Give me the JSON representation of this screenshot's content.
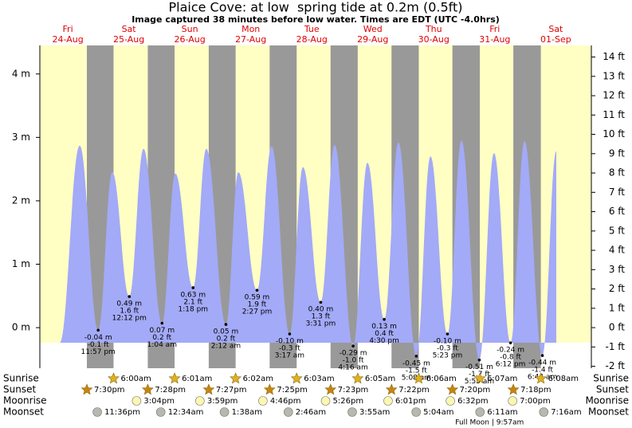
{
  "chart_data": {
    "type": "tide",
    "title": "Plaice Cove: at low  spring tide at 0.2m (0.5ft)",
    "subtitle": "Image captured 38 minutes before low water. Times are EDT (UTC -4.0hrs)",
    "days": {
      "names": [
        "Fri",
        "Sat",
        "Sun",
        "Mon",
        "Tue",
        "Wed",
        "Thu",
        "Fri",
        "Sat"
      ],
      "dates": [
        "24-Aug",
        "25-Aug",
        "26-Aug",
        "27-Aug",
        "28-Aug",
        "29-Aug",
        "30-Aug",
        "31-Aug",
        "01-Sep"
      ],
      "x": [
        12,
        36,
        60,
        84,
        108,
        132,
        156,
        180,
        204
      ]
    },
    "xlim": [
      1,
      218
    ],
    "ylim": [
      -0.64,
      4.45
    ],
    "yticks": [
      {
        "value": 0,
        "label": "0 m"
      },
      {
        "value": 1,
        "label": "1 m"
      },
      {
        "value": 2,
        "label": "2 m"
      },
      {
        "value": 3,
        "label": "3 m"
      },
      {
        "value": 4,
        "label": "4 m"
      }
    ],
    "y2lim": [
      -2.1,
      14.6
    ],
    "y2ticks": [
      {
        "value": -2,
        "label": "-2 ft"
      },
      {
        "value": -1,
        "label": "-1 ft"
      },
      {
        "value": 0,
        "label": "0 ft"
      },
      {
        "value": 1,
        "label": "1 ft"
      },
      {
        "value": 2,
        "label": "2 ft"
      },
      {
        "value": 3,
        "label": "3 ft"
      },
      {
        "value": 4,
        "label": "4 ft"
      },
      {
        "value": 5,
        "label": "5 ft"
      },
      {
        "value": 6,
        "label": "6 ft"
      },
      {
        "value": 7,
        "label": "7 ft"
      },
      {
        "value": 8,
        "label": "8 ft"
      },
      {
        "value": 9,
        "label": "9 ft"
      },
      {
        "value": 10,
        "label": "10 ft"
      },
      {
        "value": 11,
        "label": "11 ft"
      },
      {
        "value": 12,
        "label": "12 ft"
      },
      {
        "value": 13,
        "label": "13 ft"
      },
      {
        "value": 14,
        "label": "14 ft"
      }
    ],
    "day_color": "#ffffc4",
    "night_color": "#999999",
    "tide": {
      "color": "#a3aaf7",
      "x": [
        8.8,
        16.7,
        23.95,
        29.5,
        36.2,
        41.8,
        49.07,
        54.3,
        61.3,
        66.5,
        74.2,
        79.1,
        86.45,
        92.2,
        99.28,
        104.5,
        111.52,
        117.0,
        124.27,
        129.9,
        136.5,
        142.1,
        149.13,
        154.7,
        161.38,
        166.9,
        173.92,
        179.7,
        186.2,
        191.7,
        198.73,
        204.2
      ],
      "values": [
        -0.24,
        2.87,
        -0.04,
        2.45,
        0.49,
        2.82,
        0.07,
        2.43,
        0.63,
        2.82,
        0.05,
        2.45,
        0.59,
        2.86,
        -0.1,
        2.53,
        0.4,
        2.88,
        -0.29,
        2.6,
        0.13,
        2.92,
        -0.45,
        2.7,
        -0.1,
        2.95,
        -0.51,
        2.75,
        -0.24,
        2.94,
        -0.44,
        2.78
      ],
      "value_labels": [
        null,
        null,
        "-0.04 m",
        null,
        "0.49 m",
        null,
        "0.07 m",
        null,
        "0.63 m",
        null,
        "0.05 m",
        null,
        "0.59 m",
        null,
        "-0.10 m",
        null,
        "0.40 m",
        null,
        "-0.29 m",
        null,
        "0.13 m",
        null,
        "-0.45 m",
        null,
        "-0.10 m",
        null,
        "-0.51 m",
        null,
        "-0.24 m",
        null,
        "-0.44 m",
        null
      ],
      "ft_labels": [
        null,
        null,
        "-0.1 ft",
        null,
        "1.6 ft",
        null,
        "0.2 ft",
        null,
        "2.1 ft",
        null,
        "0.2 ft",
        null,
        "1.9 ft",
        null,
        "-0.3 ft",
        null,
        "1.3 ft",
        null,
        "-1.0 ft",
        null,
        "0.4 ft",
        null,
        "-1.5 ft",
        null,
        "-0.3 ft",
        null,
        "-1.7 ft",
        null,
        "-0.8 ft",
        null,
        "-1.4 ft",
        null
      ],
      "times": [
        null,
        null,
        "11:57 pm",
        null,
        "12:12 pm",
        null,
        "1:04 am",
        null,
        "1:18 pm",
        null,
        "2:12 am",
        null,
        "2:27 pm",
        null,
        "3:17 am",
        null,
        "3:31 pm",
        null,
        "4:16 am",
        null,
        "4:30 pm",
        null,
        "5:08 am",
        null,
        "5:23 pm",
        null,
        "5:55 am",
        null,
        "6:12 pm",
        null,
        "6:44 am",
        null
      ]
    },
    "rows": [
      {
        "name": "Sunrise",
        "marker": "star",
        "color": "#e0b020",
        "x": [
          30,
          54.02,
          78.03,
          102.05,
          126.08,
          150.1,
          174.12,
          198.13
        ],
        "times": [
          "6:00am",
          "6:01am",
          "6:02am",
          "6:03am",
          "6:05am",
          "6:06am",
          "6:07am",
          "6:08am"
        ]
      },
      {
        "name": "Sunset",
        "marker": "star",
        "color": "#c88410",
        "x": [
          19.5,
          43.47,
          67.45,
          91.42,
          115.38,
          139.37,
          163.33,
          187.3
        ],
        "times": [
          "7:30pm",
          "7:28pm",
          "7:27pm",
          "7:25pm",
          "7:23pm",
          "7:22pm",
          "7:20pm",
          "7:18pm"
        ]
      },
      {
        "name": "Moonrise",
        "marker": "circle",
        "color": "#fbf7b0",
        "x": [
          39.07,
          63.98,
          88.77,
          113.43,
          138.02,
          162.53,
          187
        ],
        "times": [
          "3:04pm",
          "3:59pm",
          "4:46pm",
          "5:26pm",
          "6:01pm",
          "6:32pm",
          "7:00pm"
        ]
      },
      {
        "name": "Moonset",
        "marker": "circle",
        "color": "#b8b8b0",
        "x": [
          23.6,
          48.57,
          73.63,
          98.77,
          123.92,
          149.07,
          174.18,
          199.27
        ],
        "times": [
          "11:36pm",
          "12:34am",
          "1:38am",
          "2:46am",
          "3:55am",
          "5:04am",
          "6:11am",
          "7:16am"
        ]
      }
    ],
    "full_moon": {
      "label": "Full Moon | 9:57am",
      "x": 177.95
    }
  }
}
